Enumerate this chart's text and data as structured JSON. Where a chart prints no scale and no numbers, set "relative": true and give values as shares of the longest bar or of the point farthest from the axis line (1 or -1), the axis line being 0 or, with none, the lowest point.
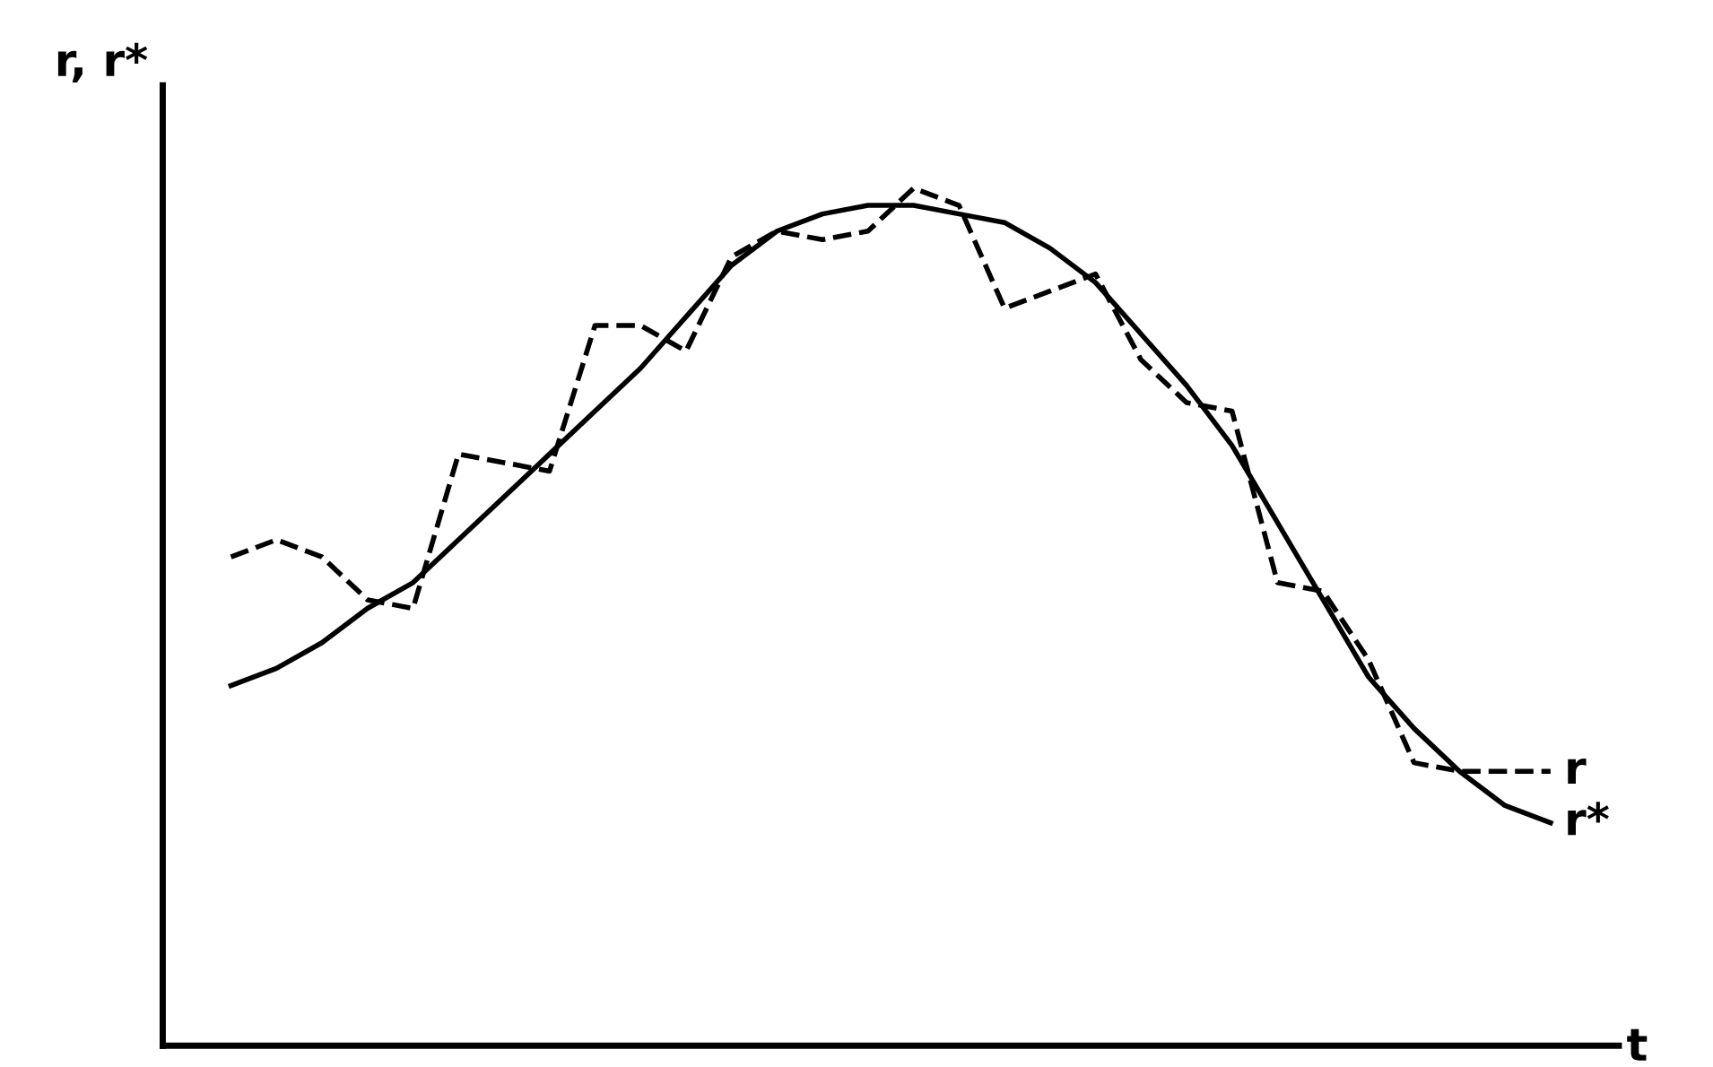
{
  "chart_data": {
    "type": "line",
    "relative": true,
    "xlabel": "t",
    "ylabel": "r, r*",
    "legend": false,
    "grid": false,
    "marker": "none",
    "categories": [
      null,
      null,
      null,
      null,
      null,
      null,
      null,
      null,
      null,
      null,
      null,
      null,
      null,
      null,
      null,
      null,
      null,
      null,
      null,
      null,
      null,
      null,
      null,
      null,
      null,
      null,
      null,
      null,
      null,
      null
    ],
    "series": [
      {
        "name": "r",
        "color": "#000000",
        "line_style": "dashed",
        "values": [
          0.57,
          0.59,
          0.57,
          0.52,
          0.51,
          0.69,
          0.68,
          0.67,
          0.84,
          0.84,
          0.81,
          0.92,
          0.95,
          0.94,
          0.95,
          1.0,
          0.98,
          0.86,
          0.88,
          0.9,
          0.8,
          0.75,
          0.74,
          0.54,
          0.53,
          0.45,
          0.33,
          0.32,
          0.32,
          0.32
        ]
      },
      {
        "name": "r*",
        "color": "#000000",
        "line_style": "solid",
        "values": [
          0.42,
          0.44,
          0.47,
          0.51,
          0.54,
          0.59,
          0.64,
          0.69,
          0.74,
          0.79,
          0.85,
          0.91,
          0.95,
          0.97,
          0.98,
          0.98,
          0.97,
          0.96,
          0.93,
          0.89,
          0.83,
          0.77,
          0.7,
          0.61,
          0.52,
          0.43,
          0.37,
          0.32,
          0.28,
          0.26
        ]
      }
    ]
  }
}
